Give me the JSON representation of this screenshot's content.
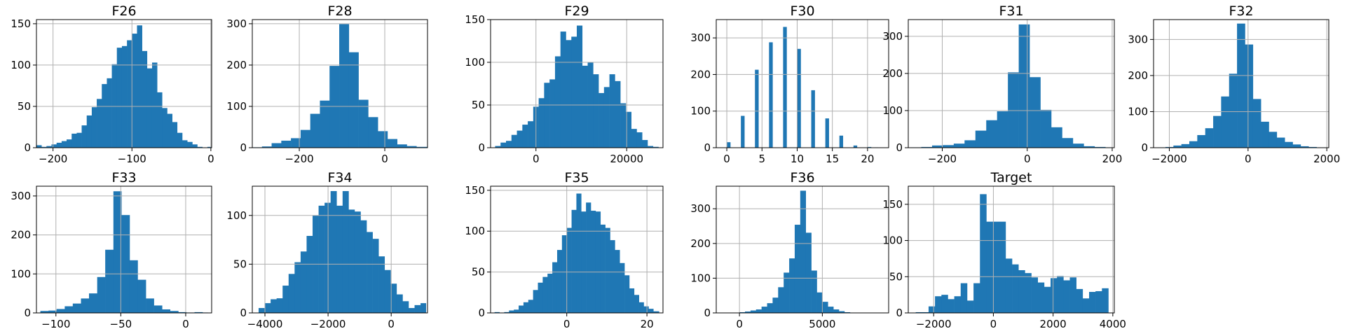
{
  "chart_data": [
    {
      "type": "bar",
      "title": "F26",
      "bar_color": "#1f77b4",
      "grid": true,
      "xlim": [
        -221,
        1
      ],
      "ylim": [
        0,
        155
      ],
      "xticks": [
        -200,
        -100,
        0
      ],
      "yticks": [
        0,
        50,
        100,
        150
      ],
      "bins": [
        -221,
        -214.6,
        -208.3,
        -201.9,
        -195.5,
        -189.1,
        -182.8,
        -176.4,
        -170.0,
        -163.7,
        -157.3,
        -150.9,
        -144.6,
        -138.2,
        -131.8,
        -125.5,
        -119.1,
        -112.7,
        -106.3,
        -100.0,
        -93.6,
        -87.2,
        -80.9,
        -74.5,
        -68.1,
        -61.8,
        -55.4,
        -49.0,
        -42.7,
        -36.3,
        -29.9,
        -23.5,
        -17.2,
        -10.8,
        -4.4,
        1
      ],
      "counts": [
        3,
        1,
        2,
        4,
        6,
        8,
        10,
        17,
        18,
        27,
        39,
        49,
        59,
        77,
        84,
        101,
        121,
        123,
        130,
        138,
        148,
        117,
        96,
        103,
        67,
        48,
        41,
        31,
        18,
        9,
        7,
        4,
        1,
        0,
        1
      ]
    },
    {
      "type": "bar",
      "title": "F28",
      "bar_color": "#1f77b4",
      "grid": true,
      "xlim": [
        -310,
        100
      ],
      "ylim": [
        0,
        310
      ],
      "xticks": [
        -200,
        0
      ],
      "yticks": [
        0,
        100,
        200,
        300
      ],
      "bins": [
        -310,
        -287.4,
        -264.8,
        -242.2,
        -219.6,
        -197.0,
        -174.4,
        -151.8,
        -129.2,
        -106.6,
        -84.0,
        -61.4,
        -38.8,
        -16.2,
        6.4,
        29.0,
        51.6,
        74.2,
        100
      ],
      "counts": [
        1,
        3,
        11,
        17,
        23,
        43,
        82,
        114,
        198,
        299,
        231,
        116,
        74,
        40,
        21,
        8,
        4,
        2
      ]
    },
    {
      "type": "bar",
      "title": "F29",
      "bar_color": "#1f77b4",
      "grid": true,
      "xlim": [
        -10000,
        28000
      ],
      "ylim": [
        0,
        150
      ],
      "xticks": [
        0,
        20000
      ],
      "yticks": [
        0,
        50,
        100,
        150
      ],
      "bins": [
        -9000,
        -7800,
        -6600,
        -5400,
        -4200,
        -3000,
        -1800,
        -600,
        600,
        1800,
        3000,
        4200,
        5400,
        6600,
        7800,
        9000,
        10200,
        11400,
        12600,
        13800,
        15000,
        16200,
        17400,
        18600,
        19800,
        21000,
        22200,
        23400,
        24600,
        25800,
        27000
      ],
      "counts": [
        2,
        6,
        8,
        15,
        20,
        27,
        31,
        48,
        58,
        76,
        80,
        107,
        136,
        126,
        130,
        143,
        96,
        100,
        86,
        64,
        71,
        86,
        78,
        52,
        42,
        22,
        18,
        9,
        2,
        1
      ]
    },
    {
      "type": "bar",
      "title": "F30",
      "bar_color": "#1f77b4",
      "grid": true,
      "xlim": [
        -1.5,
        23
      ],
      "ylim": [
        0,
        350
      ],
      "xticks": [
        0,
        5,
        10,
        15,
        20
      ],
      "yticks": [
        0,
        100,
        200,
        300
      ],
      "bins": [
        0,
        1,
        2,
        3,
        4,
        5,
        6,
        7,
        8,
        9,
        10,
        11,
        12,
        13,
        14,
        15,
        16,
        17,
        18,
        19,
        20,
        21,
        22
      ],
      "counts": [
        15,
        0,
        87,
        0,
        213,
        0,
        288,
        0,
        330,
        0,
        270,
        0,
        157,
        0,
        80,
        0,
        33,
        0,
        6,
        0,
        2,
        1
      ],
      "bar_widths": [
        0.5,
        0,
        0.5,
        0,
        0.5,
        0,
        0.5,
        0,
        0.5,
        0,
        0.5,
        0,
        0.5,
        0,
        0.5,
        0,
        0.5,
        0,
        0.5,
        0,
        0.5,
        0.5
      ]
    },
    {
      "type": "bar",
      "title": "F31",
      "bar_color": "#1f77b4",
      "grid": true,
      "xlim": [
        -280,
        205
      ],
      "ylim": [
        0,
        345
      ],
      "xticks": [
        -200,
        0,
        200
      ],
      "yticks": [
        0,
        100,
        200,
        300
      ],
      "bins": [
        -275,
        -249.5,
        -224.0,
        -198.5,
        -173.0,
        -147.5,
        -122.0,
        -96.5,
        -71.0,
        -45.5,
        -20.0,
        5.5,
        31.0,
        56.5,
        82.0,
        107.5,
        133.0,
        158.5,
        184.0,
        200
      ],
      "counts": [
        1,
        2,
        6,
        7,
        11,
        20,
        46,
        74,
        98,
        203,
        332,
        190,
        102,
        55,
        26,
        11,
        4,
        2,
        1
      ]
    },
    {
      "type": "bar",
      "title": "F32",
      "bar_color": "#1f77b4",
      "grid": true,
      "xlim": [
        -2400,
        2050
      ],
      "ylim": [
        0,
        355
      ],
      "xticks": [
        -2000,
        0,
        2000
      ],
      "yticks": [
        0,
        100,
        200,
        300
      ],
      "bins": [
        -2300,
        -2098,
        -1896,
        -1694,
        -1492,
        -1290,
        -1088,
        -886,
        -684,
        -482,
        -280,
        -78,
        124,
        326,
        528,
        730,
        932,
        1134,
        1336,
        1538,
        1740,
        2000
      ],
      "counts": [
        1,
        2,
        6,
        10,
        18,
        35,
        54,
        88,
        142,
        205,
        344,
        286,
        135,
        72,
        44,
        28,
        16,
        9,
        4,
        2,
        1
      ]
    },
    {
      "type": "bar",
      "title": "F33",
      "bar_color": "#1f77b4",
      "grid": true,
      "xlim": [
        -115,
        20
      ],
      "ylim": [
        0,
        325
      ],
      "xticks": [
        -100,
        -50,
        0
      ],
      "yticks": [
        0,
        100,
        200,
        300
      ],
      "bins": [
        -112,
        -105.7,
        -99.5,
        -93.2,
        -87.0,
        -80.7,
        -74.5,
        -68.2,
        -62.0,
        -55.7,
        -49.5,
        -43.2,
        -37.0,
        -30.7,
        -24.5,
        -18.2,
        -12.0,
        -5.7,
        0.5,
        6.8,
        13.0,
        17
      ],
      "counts": [
        5,
        6,
        10,
        17,
        24,
        37,
        50,
        92,
        162,
        312,
        251,
        135,
        85,
        37,
        19,
        9,
        5,
        2,
        1,
        2,
        1
      ]
    },
    {
      "type": "bar",
      "title": "F34",
      "bar_color": "#1f77b4",
      "grid": true,
      "xlim": [
        -4400,
        1150
      ],
      "ylim": [
        0,
        130
      ],
      "xticks": [
        -4000,
        -2000,
        0
      ],
      "yticks": [
        0,
        50,
        100
      ],
      "bins": [
        -4200,
        -4010,
        -3820,
        -3630,
        -3440,
        -3250,
        -3060,
        -2870,
        -2680,
        -2490,
        -2300,
        -2110,
        -1920,
        -1730,
        -1540,
        -1350,
        -1160,
        -970,
        -780,
        -590,
        -400,
        -210,
        -20,
        170,
        360,
        550,
        740,
        930,
        1100
      ],
      "counts": [
        5,
        10,
        14,
        15,
        28,
        40,
        52,
        63,
        79,
        100,
        110,
        113,
        125,
        110,
        125,
        106,
        104,
        95,
        83,
        76,
        58,
        44,
        30,
        19,
        12,
        5,
        8,
        10
      ]
    },
    {
      "type": "bar",
      "title": "F35",
      "bar_color": "#1f77b4",
      "grid": true,
      "xlim": [
        -19,
        24
      ],
      "ylim": [
        0,
        155
      ],
      "xticks": [
        0,
        20
      ],
      "yticks": [
        0,
        50,
        100,
        150
      ],
      "bins": [
        -18,
        -16.8,
        -15.6,
        -14.4,
        -13.2,
        -12.0,
        -10.8,
        -9.6,
        -8.4,
        -7.2,
        -6.0,
        -4.8,
        -3.6,
        -2.4,
        -1.2,
        0,
        1.2,
        2.4,
        3.6,
        4.8,
        6.0,
        7.2,
        8.4,
        9.6,
        10.8,
        12.0,
        13.2,
        14.4,
        15.6,
        16.8,
        18.0,
        19.2,
        20.4,
        21.6,
        23
      ],
      "counts": [
        1,
        0,
        1,
        3,
        4,
        9,
        13,
        16,
        28,
        37,
        44,
        48,
        62,
        77,
        95,
        104,
        126,
        146,
        124,
        135,
        125,
        124,
        108,
        104,
        89,
        77,
        61,
        46,
        30,
        22,
        13,
        8,
        5,
        2
      ]
    },
    {
      "type": "bar",
      "title": "F36",
      "bar_color": "#1f77b4",
      "grid": true,
      "xlim": [
        -1400,
        9000
      ],
      "ylim": [
        0,
        365
      ],
      "xticks": [
        0,
        5000
      ],
      "yticks": [
        0,
        100,
        200,
        300
      ],
      "bins": [
        -1000,
        -667,
        -333,
        0,
        333,
        667,
        1000,
        1333,
        1667,
        2000,
        2333,
        2667,
        3000,
        3333,
        3667,
        4000,
        4333,
        4667,
        5000,
        5333,
        5667,
        6000,
        6333,
        6667,
        7000,
        7333,
        7667,
        8000
      ],
      "counts": [
        1,
        1,
        1,
        2,
        4,
        7,
        10,
        18,
        28,
        44,
        74,
        116,
        157,
        254,
        352,
        231,
        122,
        59,
        32,
        18,
        10,
        5,
        2,
        1,
        1,
        0,
        1
      ]
    },
    {
      "type": "bar",
      "title": "Target",
      "bar_color": "#1f77b4",
      "grid": true,
      "xlim": [
        -2850,
        4050
      ],
      "ylim": [
        0,
        175
      ],
      "xticks": [
        -2000,
        0,
        2000,
        4000
      ],
      "yticks": [
        0,
        50,
        100,
        150
      ],
      "bins": [
        -2600,
        -2385,
        -2170,
        -1955,
        -1740,
        -1525,
        -1310,
        -1095,
        -880,
        -665,
        -450,
        -235,
        -20,
        195,
        410,
        625,
        840,
        1055,
        1270,
        1485,
        1700,
        1915,
        2130,
        2345,
        2560,
        2775,
        2990,
        3205,
        3420,
        3635,
        3850
      ],
      "counts": [
        1,
        1,
        9,
        23,
        25,
        19,
        23,
        41,
        17,
        41,
        164,
        126,
        126,
        126,
        75,
        67,
        59,
        55,
        49,
        42,
        36,
        48,
        51,
        45,
        49,
        33,
        20,
        29,
        30,
        34
      ]
    }
  ]
}
